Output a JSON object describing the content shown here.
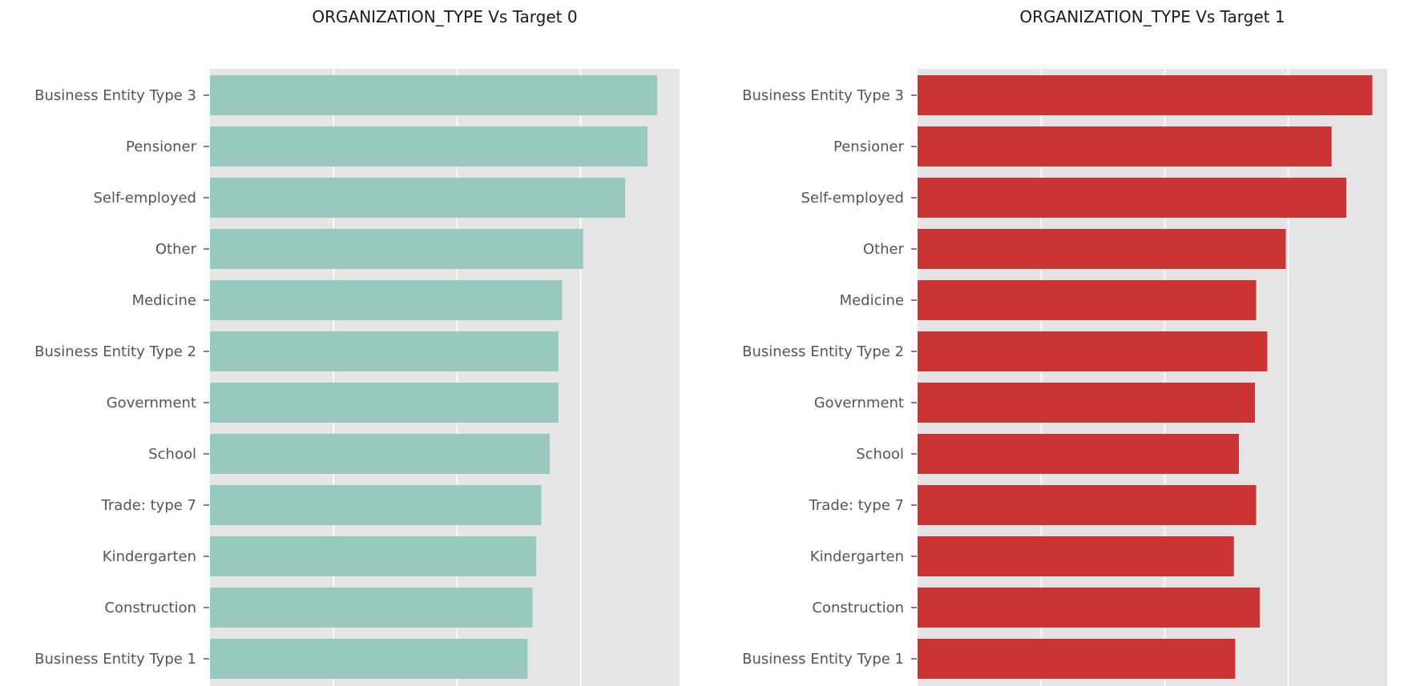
{
  "chart_data": [
    {
      "type": "bar",
      "orientation": "horizontal",
      "title": "ORGANIZATION_TYPE Vs Target 0",
      "categories": [
        "Business Entity Type 3",
        "Pensioner",
        "Self-employed",
        "Other",
        "Medicine",
        "Business Entity Type 2",
        "Government",
        "School",
        "Trade: type 7",
        "Kindergarten",
        "Construction",
        "Business Entity Type 1"
      ],
      "values": [
        36.2,
        35.4,
        33.6,
        30.2,
        28.5,
        28.2,
        28.2,
        27.5,
        26.8,
        26.4,
        26.1,
        25.7
      ],
      "xlim": [
        0,
        38
      ],
      "grid": true,
      "color": "#97c9bf",
      "background": "#e5e5e5"
    },
    {
      "type": "bar",
      "orientation": "horizontal",
      "title": "ORGANIZATION_TYPE Vs Target 1",
      "categories": [
        "Business Entity Type 3",
        "Pensioner",
        "Self-employed",
        "Other",
        "Medicine",
        "Business Entity Type 2",
        "Government",
        "School",
        "Trade: type 7",
        "Kindergarten",
        "Construction",
        "Business Entity Type 1"
      ],
      "values": [
        36.8,
        33.5,
        34.7,
        29.8,
        27.4,
        28.3,
        27.3,
        26.0,
        27.4,
        25.6,
        27.7,
        25.7
      ],
      "xlim": [
        0,
        38
      ],
      "grid": true,
      "color": "#cc3333",
      "background": "#e5e5e5"
    }
  ]
}
